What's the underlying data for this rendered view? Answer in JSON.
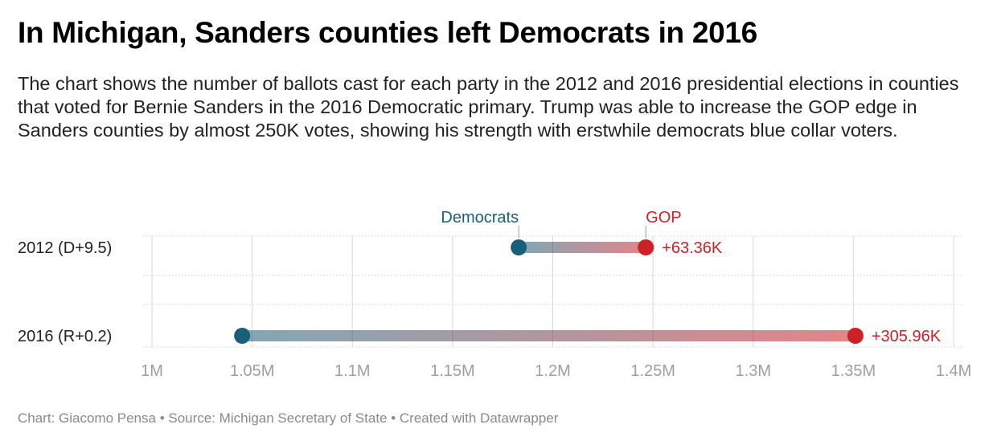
{
  "title": "In Michigan, Sanders counties left Democrats in 2016",
  "description": "The chart shows the number of ballots cast for each party in the 2012 and 2016 presidential elections in counties that voted for Bernie Sanders in the 2016 Democratic primary. Trump was able to increase the GOP edge in Sanders counties by almost 250K votes, showing his strength with erstwhile democrats blue collar voters.",
  "footer": "Chart: Giacomo Pensa • Source: Michigan Secretary of State • Created with Datawrapper",
  "colors": {
    "democrats": "#1a5f7a",
    "gop": "#cc2127",
    "grid": "#d8d8d8",
    "tick_text": "#9e9e9e"
  },
  "chart_data": {
    "type": "range-dot",
    "x_ticks": [
      {
        "value": 1000000,
        "label": "1M"
      },
      {
        "value": 1050000,
        "label": "1.05M"
      },
      {
        "value": 1100000,
        "label": "1.1M"
      },
      {
        "value": 1150000,
        "label": "1.15M"
      },
      {
        "value": 1200000,
        "label": "1.2M"
      },
      {
        "value": 1250000,
        "label": "1.25M"
      },
      {
        "value": 1300000,
        "label": "1.3M"
      },
      {
        "value": 1350000,
        "label": "1.35M"
      },
      {
        "value": 1400000,
        "label": "1.4M"
      }
    ],
    "xlim": [
      1000000,
      1400000
    ],
    "legend": {
      "democrats": "Democrats",
      "gop": "GOP"
    },
    "series_names": [
      "Democrats",
      "GOP"
    ],
    "rows": [
      {
        "label": "2012 (D+9.5)",
        "democrats": 1183000,
        "gop": 1246400,
        "diff_label": "+63.36K"
      },
      {
        "label": "2016 (R+0.2)",
        "democrats": 1045000,
        "gop": 1351000,
        "diff_label": "+305.96K"
      }
    ],
    "grid": true
  }
}
